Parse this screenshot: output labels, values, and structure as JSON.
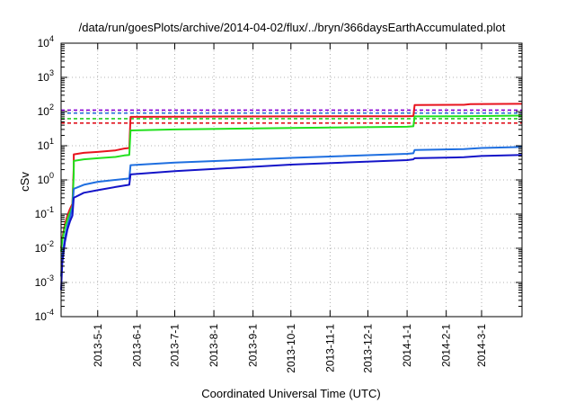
{
  "chart_data": {
    "type": "line",
    "title": "/data/run/goesPlots/archive/2014-04-02/flux/../bryn/366daysEarthAccumulated.plot",
    "xlabel": "Coordinated Universal Time (UTC)",
    "ylabel": "cSv",
    "xscale": "time",
    "yscale": "log",
    "xlim": [
      "2013-04-02",
      "2014-04-02"
    ],
    "ylim": [
      0.0001,
      10000
    ],
    "grid": true,
    "x_ticks": [
      "2013-5-1",
      "2013-6-1",
      "2013-7-1",
      "2013-8-1",
      "2013-9-1",
      "2013-10-1",
      "2013-11-1",
      "2013-12-1",
      "2014-1-1",
      "2014-2-1",
      "2014-3-1"
    ],
    "y_ticks": [
      {
        "value": 0.0001,
        "base": "10",
        "exp": "-4"
      },
      {
        "value": 0.001,
        "base": "10",
        "exp": "-3"
      },
      {
        "value": 0.01,
        "base": "10",
        "exp": "-2"
      },
      {
        "value": 0.1,
        "base": "10",
        "exp": "-1"
      },
      {
        "value": 1,
        "base": "10",
        "exp": "0"
      },
      {
        "value": 10,
        "base": "10",
        "exp": "1"
      },
      {
        "value": 100,
        "base": "10",
        "exp": "2"
      },
      {
        "value": 1000,
        "base": "10",
        "exp": "3"
      },
      {
        "value": 10000,
        "base": "10",
        "exp": "4"
      }
    ],
    "series": [
      {
        "color": "#e8141e",
        "width": 2,
        "points": [
          [
            "2013-04-02",
            0.01
          ],
          [
            "2013-04-03",
            0.02
          ],
          [
            "2013-04-05",
            0.05
          ],
          [
            "2013-04-07",
            0.09
          ],
          [
            "2013-04-09",
            0.14
          ],
          [
            "2013-04-11",
            0.2
          ],
          [
            "2013-04-12",
            2.5
          ],
          [
            "2013-04-12",
            5.6
          ],
          [
            "2013-04-20",
            6.2
          ],
          [
            "2013-05-01",
            6.6
          ],
          [
            "2013-05-15",
            7.3
          ],
          [
            "2013-05-22",
            8.3
          ],
          [
            "2013-05-26",
            8.6
          ],
          [
            "2013-05-27",
            70
          ],
          [
            "2013-07-01",
            71
          ],
          [
            "2013-10-01",
            72
          ],
          [
            "2014-01-01",
            73
          ],
          [
            "2014-01-06",
            74
          ],
          [
            "2014-01-07",
            155
          ],
          [
            "2014-02-15",
            158
          ],
          [
            "2014-02-20",
            165
          ],
          [
            "2014-04-02",
            168
          ]
        ]
      },
      {
        "color": "#22e01e",
        "width": 2,
        "points": [
          [
            "2013-04-02",
            0.008
          ],
          [
            "2013-04-03",
            0.018
          ],
          [
            "2013-04-05",
            0.04
          ],
          [
            "2013-04-07",
            0.07
          ],
          [
            "2013-04-09",
            0.11
          ],
          [
            "2013-04-11",
            0.17
          ],
          [
            "2013-04-12",
            1.5
          ],
          [
            "2013-04-12",
            3.6
          ],
          [
            "2013-04-20",
            4.0
          ],
          [
            "2013-05-01",
            4.3
          ],
          [
            "2013-05-15",
            4.7
          ],
          [
            "2013-05-22",
            5.2
          ],
          [
            "2013-05-26",
            5.4
          ],
          [
            "2013-05-27",
            28
          ],
          [
            "2013-07-01",
            30
          ],
          [
            "2013-10-01",
            33
          ],
          [
            "2014-01-01",
            36
          ],
          [
            "2014-01-06",
            37
          ],
          [
            "2014-01-07",
            72
          ],
          [
            "2014-02-15",
            73
          ],
          [
            "2014-04-02",
            76
          ]
        ]
      },
      {
        "color": "#1f6fe0",
        "width": 2,
        "points": [
          [
            "2013-04-02",
            0.0015
          ],
          [
            "2013-04-03",
            0.006
          ],
          [
            "2013-04-05",
            0.02
          ],
          [
            "2013-04-07",
            0.045
          ],
          [
            "2013-04-09",
            0.08
          ],
          [
            "2013-04-11",
            0.15
          ],
          [
            "2013-04-12",
            0.55
          ],
          [
            "2013-04-20",
            0.72
          ],
          [
            "2013-05-01",
            0.88
          ],
          [
            "2013-05-15",
            1.0
          ],
          [
            "2013-05-26",
            1.1
          ],
          [
            "2013-05-27",
            2.7
          ],
          [
            "2013-07-01",
            3.2
          ],
          [
            "2013-10-01",
            4.4
          ],
          [
            "2014-01-01",
            5.8
          ],
          [
            "2014-01-06",
            6.0
          ],
          [
            "2014-01-07",
            7.5
          ],
          [
            "2014-02-15",
            8.0
          ],
          [
            "2014-03-01",
            8.6
          ],
          [
            "2014-04-02",
            9.2
          ]
        ]
      },
      {
        "color": "#1414c8",
        "width": 2,
        "points": [
          [
            "2013-04-02",
            0.0006
          ],
          [
            "2013-04-03",
            0.004
          ],
          [
            "2013-04-05",
            0.015
          ],
          [
            "2013-04-07",
            0.035
          ],
          [
            "2013-04-09",
            0.06
          ],
          [
            "2013-04-11",
            0.09
          ],
          [
            "2013-04-12",
            0.3
          ],
          [
            "2013-04-20",
            0.42
          ],
          [
            "2013-05-01",
            0.5
          ],
          [
            "2013-05-15",
            0.62
          ],
          [
            "2013-05-26",
            0.72
          ],
          [
            "2013-05-27",
            1.45
          ],
          [
            "2013-07-01",
            1.8
          ],
          [
            "2013-10-01",
            2.8
          ],
          [
            "2014-01-01",
            3.8
          ],
          [
            "2014-01-06",
            4.0
          ],
          [
            "2014-01-07",
            4.3
          ],
          [
            "2014-02-15",
            4.6
          ],
          [
            "2014-03-01",
            5.0
          ],
          [
            "2014-04-02",
            5.4
          ]
        ]
      }
    ],
    "reference_lines": [
      {
        "value": 110,
        "color": "#8a00d4",
        "dash": "4,3"
      },
      {
        "value": 90,
        "color": "#1d6ad8",
        "dash": "4,3"
      },
      {
        "value": 62,
        "color": "#22d022",
        "dash": "4,3"
      },
      {
        "value": 46,
        "color": "#e0141e",
        "dash": "4,3"
      }
    ]
  }
}
